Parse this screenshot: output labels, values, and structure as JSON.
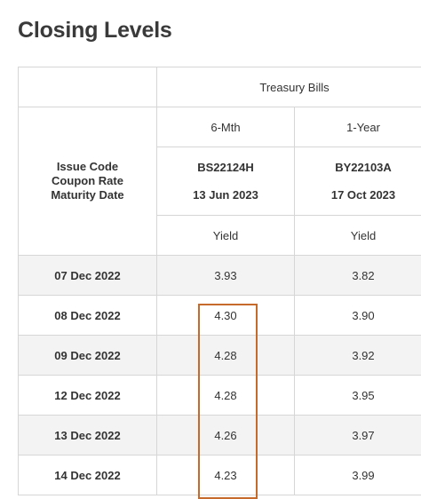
{
  "page": {
    "title": "Closing Levels"
  },
  "table": {
    "group_header": "Treasury Bills",
    "stub_lines": [
      "Issue Code",
      "Coupon Rate",
      "Maturity Date"
    ],
    "columns": [
      {
        "tenor": "6-Mth",
        "issue_code": "BS22124H",
        "maturity_date": "13 Jun 2023",
        "measure": "Yield"
      },
      {
        "tenor": "1-Year",
        "issue_code": "BY22103A",
        "maturity_date": "17 Oct 2023",
        "measure": "Yield"
      }
    ],
    "rows": [
      {
        "date": "07 Dec 2022",
        "values": [
          "3.93",
          "3.82"
        ]
      },
      {
        "date": "08 Dec 2022",
        "values": [
          "4.30",
          "3.90"
        ]
      },
      {
        "date": "09 Dec 2022",
        "values": [
          "4.28",
          "3.92"
        ]
      },
      {
        "date": "12 Dec 2022",
        "values": [
          "4.28",
          "3.95"
        ]
      },
      {
        "date": "13 Dec 2022",
        "values": [
          "4.26",
          "3.97"
        ]
      },
      {
        "date": "14 Dec 2022",
        "values": [
          "4.23",
          "3.99"
        ]
      }
    ]
  },
  "colors": {
    "highlight_border": "#c56a2a",
    "shaded_row": "#f3f3f3",
    "grid": "#d6d6d6"
  }
}
